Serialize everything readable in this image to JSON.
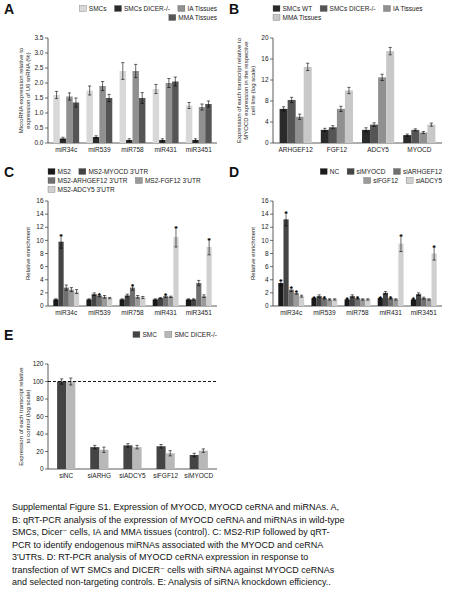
{
  "chart_data": [
    {
      "type": "bar",
      "title": "A",
      "y_label": "MicroRNA expression relative to\nexpression of U6 snRNA (%)",
      "categories": [
        "miR34c",
        "miR539",
        "miR758",
        "miR431",
        "miR3451"
      ],
      "series": [
        {
          "name": "SMCs",
          "color": "#d8d8d8",
          "values": [
            1.6,
            1.75,
            2.4,
            1.8,
            1.25
          ],
          "errors": [
            0.12,
            0.15,
            0.28,
            0.15,
            0.1
          ]
        },
        {
          "name": "SMCs DICER-/-",
          "color": "#2a2a2a",
          "values": [
            0.15,
            0.2,
            0.1,
            0.1,
            0.1
          ],
          "errors": [
            0.04,
            0.04,
            0.04,
            0.04,
            0.04
          ]
        },
        {
          "name": "IA Tissues",
          "color": "#909090",
          "values": [
            1.55,
            1.9,
            2.4,
            2.0,
            1.2
          ],
          "errors": [
            0.12,
            0.15,
            0.22,
            0.15,
            0.1
          ]
        },
        {
          "name": "MMA Tissues",
          "color": "#555555",
          "values": [
            1.35,
            1.5,
            1.5,
            2.05,
            1.3
          ],
          "errors": [
            0.15,
            0.12,
            0.18,
            0.15,
            0.1
          ]
        }
      ],
      "ylim": [
        0,
        3.5
      ],
      "yticks": [
        {
          "value": 0,
          "label": "0.0"
        },
        0.5,
        {
          "value": 1,
          "label": "1.0"
        },
        1.5,
        {
          "value": 2,
          "label": "2.0"
        },
        2.5,
        {
          "value": 3,
          "label": "3.0"
        },
        3.5
      ],
      "legend": "upper right"
    },
    {
      "type": "bar",
      "title": "B",
      "y_label": "Expression of each transcript relative to\nMYOCD expression in the respective\ncell line (log scale)",
      "categories": [
        "ARHGEF12",
        "FGF12",
        "ADCY5",
        "MYOCD"
      ],
      "series": [
        {
          "name": "SMCs WT",
          "color": "#2a2a2a",
          "values": [
            6.5,
            2.5,
            2.5,
            1.5
          ],
          "errors": [
            0.4,
            0.3,
            0.4,
            0.2
          ]
        },
        {
          "name": "SMCs DICER-/-",
          "color": "#555555",
          "values": [
            8.2,
            3.0,
            3.5,
            2.5
          ],
          "errors": [
            0.5,
            0.3,
            0.35,
            0.2
          ]
        },
        {
          "name": "IA Tissues",
          "color": "#909090",
          "values": [
            5.0,
            6.5,
            12.5,
            2.0
          ],
          "errors": [
            0.5,
            0.5,
            0.6,
            0.2
          ]
        },
        {
          "name": "MMA Tissues",
          "color": "#c8c8c8",
          "values": [
            14.5,
            10.0,
            17.5,
            3.5
          ],
          "errors": [
            0.7,
            0.6,
            0.7,
            0.3
          ]
        }
      ],
      "ylim": [
        0,
        20
      ],
      "yticks": [
        0,
        4,
        8,
        12,
        16,
        20
      ],
      "legend": "upper left"
    },
    {
      "type": "bar",
      "title": "C",
      "y_label": "Relative enrichment",
      "categories": [
        "miR34c",
        "miR539",
        "miR758",
        "miR431",
        "miR3451"
      ],
      "series": [
        {
          "name": "MS2",
          "color": "#1a1a1a",
          "values": [
            1.0,
            1.0,
            1.0,
            1.0,
            1.0
          ],
          "errors": [
            0.1,
            0.1,
            0.1,
            0.1,
            0.1
          ],
          "stars": [
            false,
            false,
            false,
            false,
            false
          ]
        },
        {
          "name": "MS2-MYOCD 3'UTR",
          "color": "#444444",
          "values": [
            9.8,
            1.8,
            1.6,
            1.2,
            1.0
          ],
          "errors": [
            1.0,
            0.2,
            0.2,
            0.1,
            0.1
          ],
          "stars": [
            true,
            false,
            false,
            false,
            false
          ]
        },
        {
          "name": "MS2-ARHGEF12 3'UTR",
          "color": "#707070",
          "values": [
            2.8,
            1.6,
            2.8,
            1.5,
            3.5
          ],
          "errors": [
            0.4,
            0.2,
            0.4,
            0.2,
            0.4
          ],
          "stars": [
            false,
            true,
            true,
            true,
            false
          ]
        },
        {
          "name": "MS2-FGF12 3'UTR",
          "color": "#9a9a9a",
          "values": [
            2.5,
            1.4,
            1.4,
            1.4,
            1.5
          ],
          "errors": [
            0.3,
            0.2,
            0.2,
            0.1,
            0.2
          ],
          "stars": [
            false,
            false,
            false,
            false,
            false
          ]
        },
        {
          "name": "MS2-ADCY5 3'UTR",
          "color": "#d0d0d0",
          "values": [
            2.2,
            1.2,
            1.3,
            10.5,
            9.0
          ],
          "errors": [
            0.3,
            0.1,
            0.15,
            1.5,
            1.2
          ],
          "stars": [
            false,
            false,
            false,
            true,
            true
          ]
        }
      ],
      "annotation": "*",
      "ylim": [
        0,
        16
      ],
      "yticks": [
        0,
        2,
        4,
        6,
        8,
        10,
        12,
        14,
        16
      ],
      "legend": "upper left"
    },
    {
      "type": "bar",
      "title": "D",
      "y_label": "Relative enrichment",
      "categories": [
        "miR34c",
        "miR539",
        "miR758",
        "miR431",
        "miR3451"
      ],
      "series": [
        {
          "name": "NC",
          "color": "#1a1a1a",
          "values": [
            3.5,
            1.2,
            1.0,
            1.2,
            1.0
          ],
          "errors": [
            0.4,
            0.1,
            0.1,
            0.1,
            0.1
          ],
          "stars": [
            true,
            true,
            true,
            true,
            true
          ]
        },
        {
          "name": "siMYOCD",
          "color": "#444444",
          "values": [
            13.2,
            1.5,
            1.5,
            2.0,
            1.8
          ],
          "errors": [
            1.0,
            0.2,
            0.2,
            0.2,
            0.2
          ],
          "stars": [
            true,
            false,
            false,
            false,
            false
          ]
        },
        {
          "name": "siARHGEF12",
          "color": "#707070",
          "values": [
            2.5,
            1.2,
            1.2,
            1.2,
            1.2
          ],
          "errors": [
            0.3,
            0.15,
            0.15,
            0.15,
            0.15
          ],
          "stars": [
            true,
            true,
            true,
            true,
            false
          ]
        },
        {
          "name": "siFGF12",
          "color": "#9a9a9a",
          "values": [
            2.0,
            1.0,
            1.0,
            1.0,
            1.0
          ],
          "errors": [
            0.2,
            0.1,
            0.1,
            0.1,
            0.1
          ],
          "stars": [
            true,
            false,
            false,
            false,
            false
          ]
        },
        {
          "name": "siADCY5",
          "color": "#d0d0d0",
          "values": [
            1.5,
            1.0,
            1.0,
            9.5,
            8.0
          ],
          "errors": [
            0.15,
            0.1,
            0.1,
            1.2,
            1.0
          ],
          "stars": [
            false,
            false,
            false,
            true,
            true
          ]
        }
      ],
      "annotation": "*",
      "ylim": [
        0,
        16
      ],
      "yticks": [
        0,
        2,
        4,
        6,
        8,
        10,
        12,
        14,
        16
      ],
      "legend": "upper right"
    },
    {
      "type": "bar",
      "title": "E",
      "y_label": "Expression of each transcript relative\nto control (log scale)",
      "categories": [
        "siNC",
        "siARHG",
        "siADCY5",
        "siFGF12",
        "siMYOCD"
      ],
      "series": [
        {
          "name": "SMC",
          "color": "#444444",
          "values": [
            100,
            25,
            27,
            26,
            16
          ],
          "errors": [
            3,
            2,
            2,
            2,
            2
          ]
        },
        {
          "name": "SMC DICER-/-",
          "color": "#b8b8b8",
          "values": [
            100,
            22,
            25,
            18,
            21
          ],
          "errors": [
            4,
            3,
            2,
            3,
            2
          ]
        }
      ],
      "hline": 100,
      "ylim": [
        0,
        120
      ],
      "yticks": [
        0,
        20,
        40,
        60,
        80,
        100,
        120
      ],
      "legend": "upper right"
    }
  ],
  "caption": "Supplemental Figure S1. Expression of MYOCD, MYOCD ceRNA and miRNAs. A,\nB: qRT-PCR analysis of the expression of MYOCD ceRNA and miRNAs in wild-type\nSMCs, Dicer⁻ cells, IA and MMA tissues (control). C: MS2-RIP followed by qRT-\nPCR to identify endogenous miRNAs associated with the MYOCD and ceRNA\n3'UTRs. D: RT-PCR analysis of MYOCD ceRNA expression in response to\ntransfection of WT SMCs and DICER⁻ cells with siRNA against MYOCD ceRNAs\nand selected non-targeting controls. E: Analysis of siRNA knockdown efficiency.."
}
